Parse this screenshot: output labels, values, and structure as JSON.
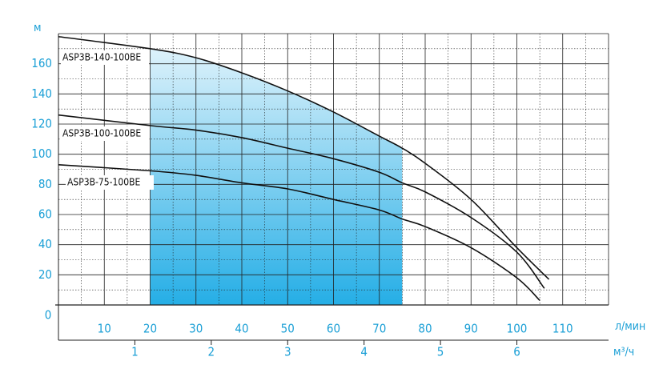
{
  "chart_data": {
    "type": "line",
    "y_label": "м",
    "x_label": "л/мин",
    "x2_label": "м³/ч",
    "xlim": [
      0,
      120
    ],
    "ylim": [
      0,
      180
    ],
    "xticks": [
      0,
      10,
      20,
      30,
      40,
      50,
      60,
      70,
      80,
      90,
      100,
      110
    ],
    "yticks": [
      20,
      40,
      60,
      80,
      100,
      120,
      140,
      160
    ],
    "x2ticks": [
      1,
      2,
      3,
      4,
      5,
      6
    ],
    "x2_per_x": 16.667,
    "shaded_range": [
      20,
      75
    ],
    "grid": true,
    "series": [
      {
        "name": "ASP3B-140-100BE",
        "color": "#111111",
        "x": [
          0,
          20,
          30,
          40,
          50,
          60,
          70,
          75,
          80,
          90,
          100,
          107
        ],
        "values": [
          178,
          170,
          164,
          154,
          142,
          128,
          112,
          104,
          94,
          70,
          38,
          17
        ]
      },
      {
        "name": "ASP3B-100-100BE",
        "color": "#111111",
        "x": [
          0,
          20,
          30,
          40,
          50,
          60,
          70,
          75,
          80,
          90,
          100,
          106
        ],
        "values": [
          126,
          119,
          116,
          111,
          104,
          97,
          88,
          81,
          75,
          58,
          35,
          11
        ]
      },
      {
        "name": "ASP3B-75-100BE",
        "color": "#111111",
        "x": [
          0,
          20,
          30,
          40,
          50,
          60,
          70,
          75,
          80,
          90,
          100,
          105
        ],
        "values": [
          93,
          89,
          86,
          81,
          77,
          70,
          63,
          57,
          52,
          38,
          18,
          3
        ]
      }
    ]
  }
}
